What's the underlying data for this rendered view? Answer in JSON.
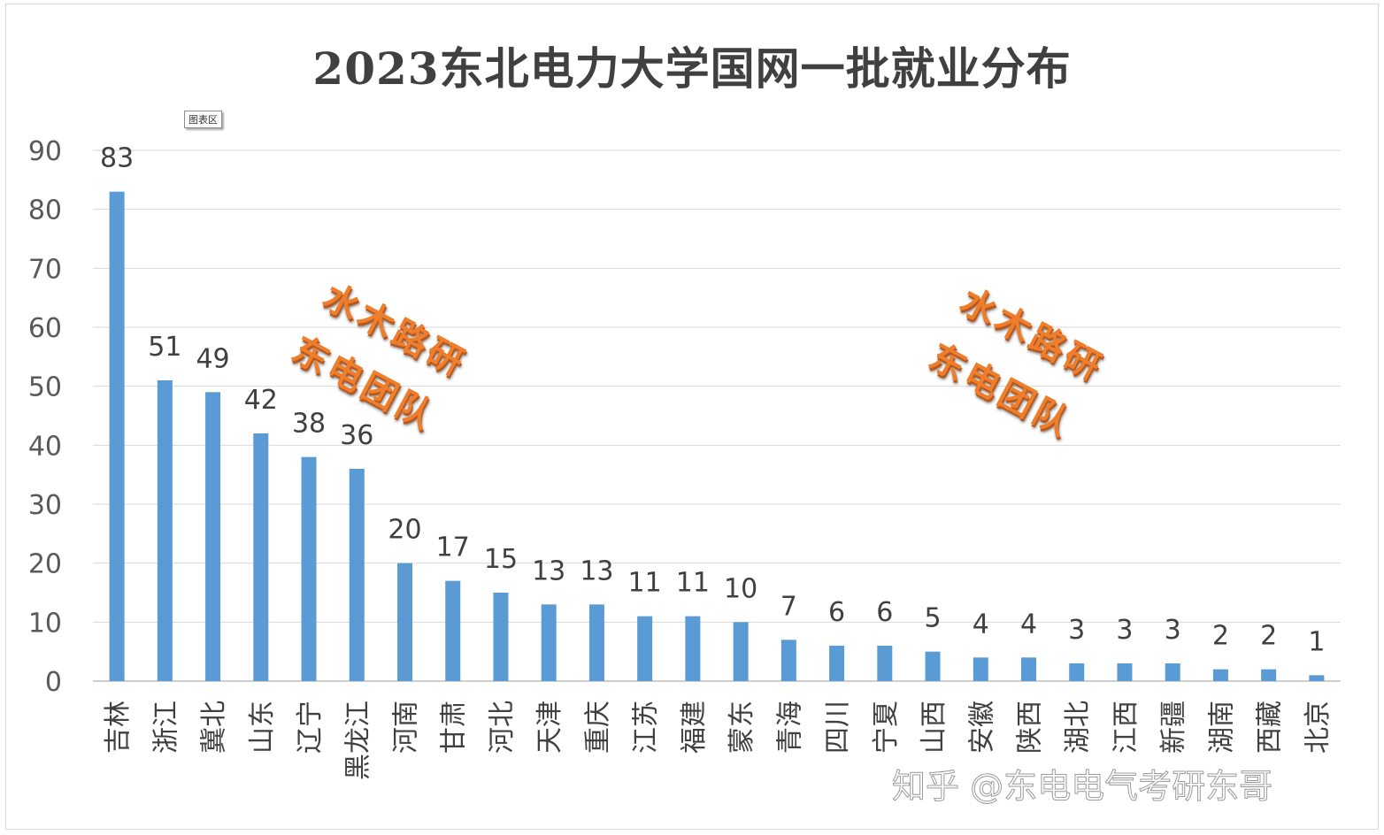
{
  "chart_data": {
    "type": "bar",
    "title": "2023东北电力大学国网一批就业分布",
    "categories": [
      "吉林",
      "浙江",
      "冀北",
      "山东",
      "辽宁",
      "黑龙江",
      "河南",
      "甘肃",
      "河北",
      "天津",
      "重庆",
      "江苏",
      "福建",
      "蒙东",
      "青海",
      "四川",
      "宁夏",
      "山西",
      "安徽",
      "陕西",
      "湖北",
      "江西",
      "新疆",
      "湖南",
      "西藏",
      "北京"
    ],
    "values": [
      83,
      51,
      49,
      42,
      38,
      36,
      20,
      17,
      15,
      13,
      13,
      11,
      11,
      10,
      7,
      6,
      6,
      5,
      4,
      4,
      3,
      3,
      3,
      2,
      2,
      1
    ],
    "ylim": [
      0,
      90
    ],
    "yticks": [
      0,
      10,
      20,
      30,
      40,
      50,
      60,
      70,
      80,
      90
    ],
    "grid": true,
    "legend": "none",
    "bar_color": "#5b9bd5",
    "data_labels": true
  },
  "chart_area_tag": "图表区",
  "watermarks": {
    "line1": "水木路研",
    "line2": "东电团队",
    "color": "#ee7d2c"
  },
  "credit": "知乎 @东电电气考研东哥"
}
